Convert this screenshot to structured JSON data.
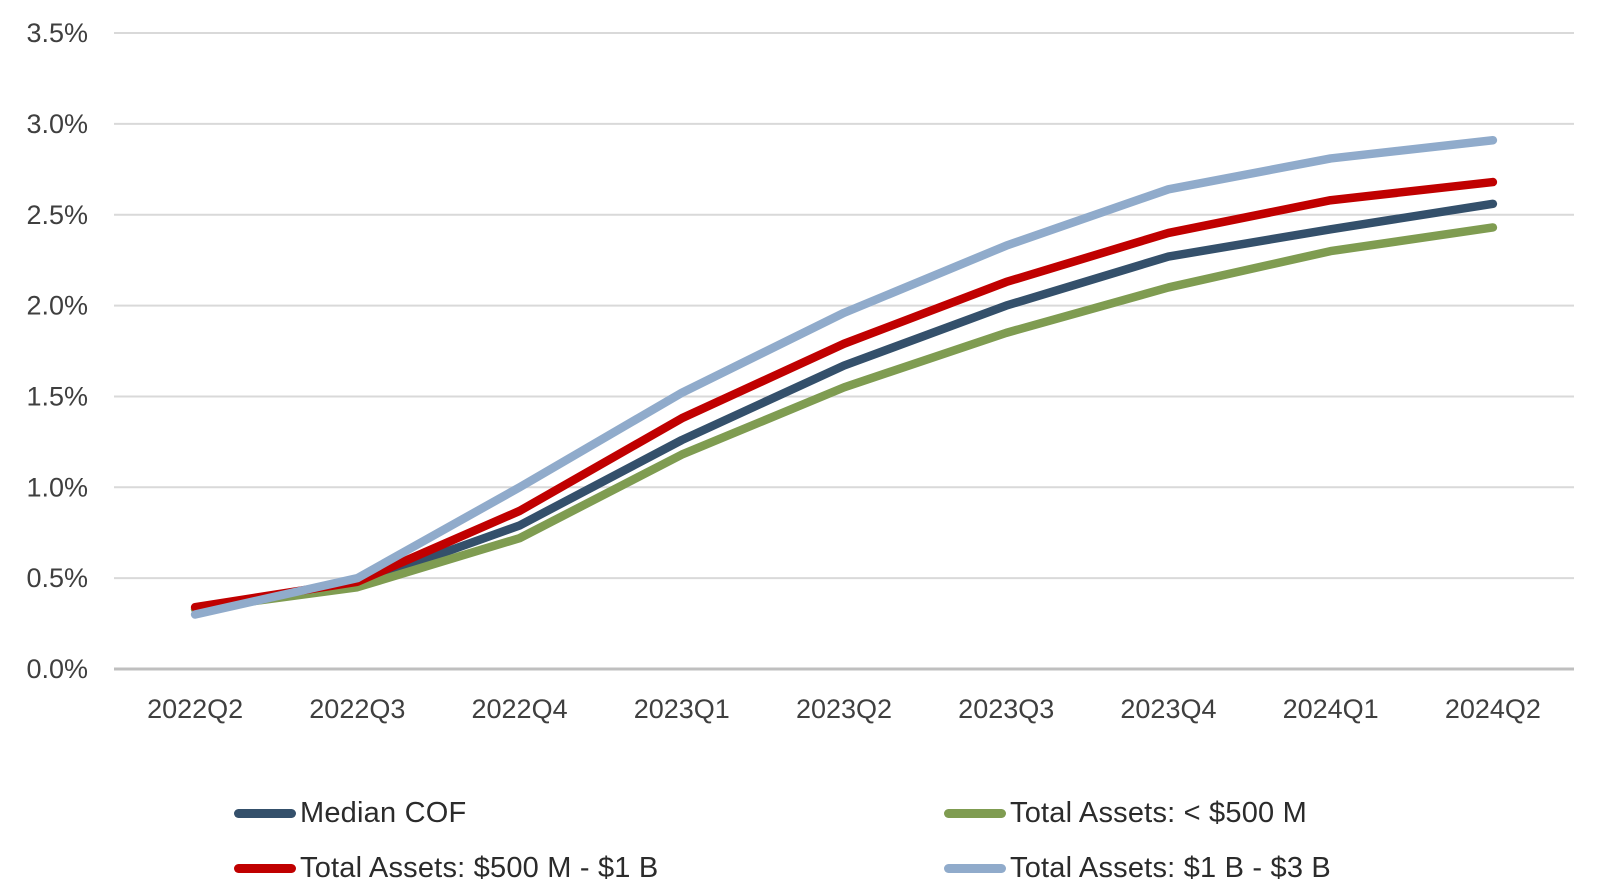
{
  "chart_data": {
    "type": "line",
    "title": "",
    "xlabel": "",
    "ylabel": "",
    "categories": [
      "2022Q2",
      "2022Q3",
      "2022Q4",
      "2023Q1",
      "2023Q2",
      "2023Q3",
      "2023Q4",
      "2024Q1",
      "2024Q2"
    ],
    "series": [
      {
        "name": "Median COF",
        "color": "#34506B",
        "values": [
          0.33,
          0.47,
          0.79,
          1.26,
          1.67,
          2.0,
          2.27,
          2.42,
          2.56
        ]
      },
      {
        "name": "Total Assets: < $500 M",
        "color": "#7F9C51",
        "values": [
          0.33,
          0.45,
          0.72,
          1.18,
          1.55,
          1.85,
          2.1,
          2.3,
          2.43
        ]
      },
      {
        "name": "Total Assets: $500 M - $1 B",
        "color": "#C00000",
        "values": [
          0.34,
          0.48,
          0.87,
          1.38,
          1.79,
          2.13,
          2.4,
          2.58,
          2.68
        ]
      },
      {
        "name": "Total Assets: $1 B - $3 B",
        "color": "#90ABCB",
        "values": [
          0.3,
          0.5,
          1.0,
          1.52,
          1.96,
          2.33,
          2.64,
          2.81,
          2.91
        ]
      }
    ],
    "ylim": [
      0,
      3.5
    ],
    "ytick_step": 0.5,
    "ytick_labels": [
      "0.0%",
      "0.5%",
      "1.0%",
      "1.5%",
      "2.0%",
      "2.5%",
      "3.0%",
      "3.5%"
    ],
    "grid": "horizontal-only",
    "legend_position": "bottom-two-columns"
  },
  "colors": {
    "background": "#FFFFFF",
    "gridline": "#D9D9D9",
    "axis_line": "#BFBFBF",
    "tick_text": "#3F3F3F"
  }
}
